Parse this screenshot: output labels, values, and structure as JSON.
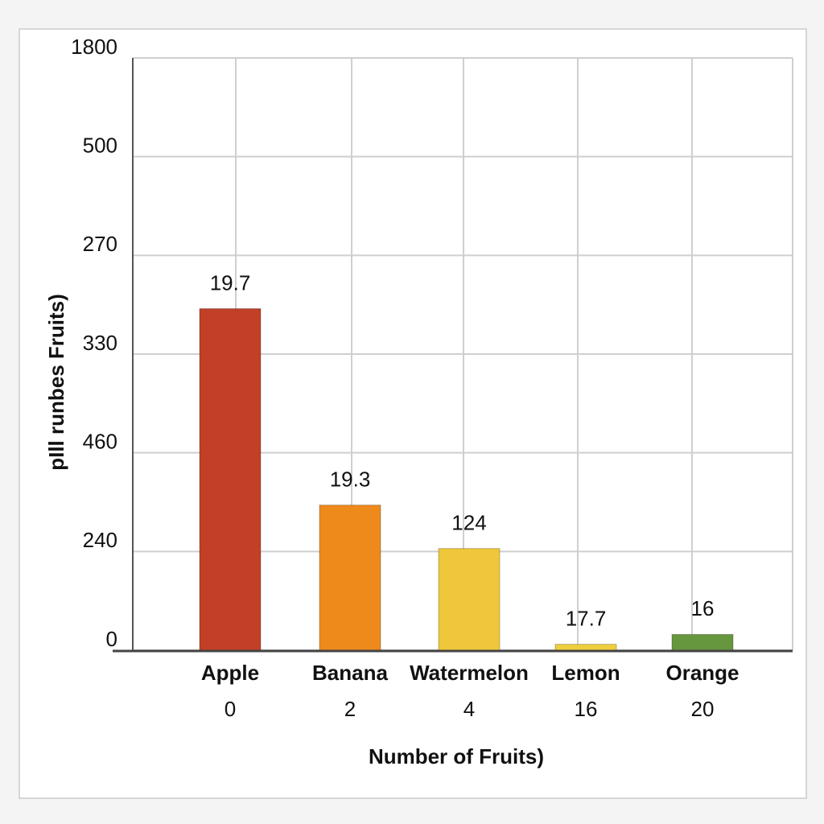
{
  "chart_data": {
    "type": "bar",
    "y_label": "pIll runbes Fruits)",
    "x_label": "Number of Fruits)",
    "categories": [
      "Apple",
      "Banana",
      "Watermelon",
      "Lemon",
      "Orange"
    ],
    "category_codes": [
      0,
      2,
      4,
      16,
      20
    ],
    "values": [
      3.46,
      1.47,
      1.03,
      0.06,
      0.16
    ],
    "value_labels": [
      "19.7",
      "19.3",
      "124",
      "17.7",
      "16"
    ],
    "colors": [
      "#c23f28",
      "#ee8a1c",
      "#eec83a",
      "#efcf3c",
      "#66963e"
    ],
    "ylim": [
      0,
      6
    ],
    "yticks": [
      {
        "value": 0,
        "label": "0"
      },
      {
        "value": 1,
        "label": "240"
      },
      {
        "value": 2,
        "label": "460"
      },
      {
        "value": 3,
        "label": "330"
      },
      {
        "value": 4,
        "label": "270"
      },
      {
        "value": 5,
        "label": "500"
      },
      {
        "value": 6,
        "label": "1800"
      }
    ],
    "grid": true
  }
}
